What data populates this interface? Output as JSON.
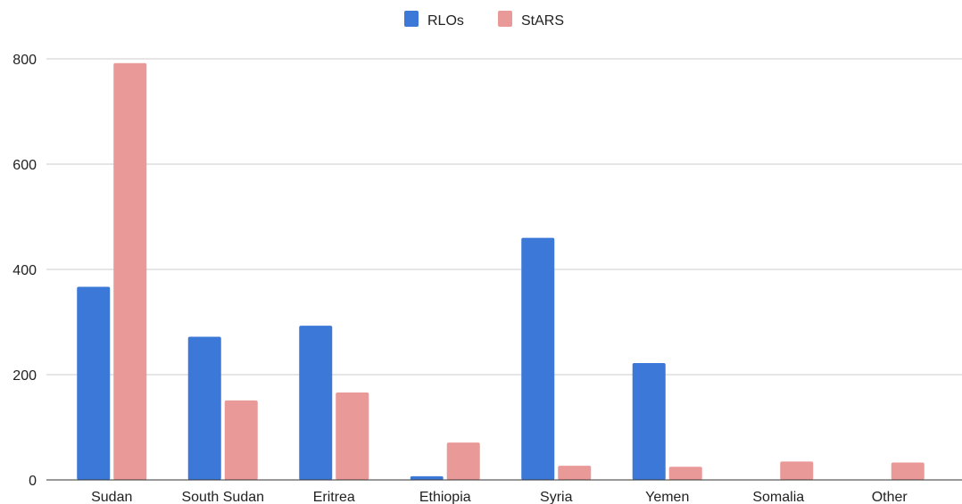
{
  "chart_data": {
    "type": "bar",
    "title": "",
    "xlabel": "",
    "ylabel": "",
    "categories": [
      "Sudan",
      "South Sudan",
      "Eritrea",
      "Ethiopia",
      "Syria",
      "Yemen",
      "Somalia",
      "Other"
    ],
    "series": [
      {
        "name": "RLOs",
        "color": "#3c78d8",
        "values": [
          367,
          272,
          293,
          7,
          460,
          222,
          0,
          0
        ]
      },
      {
        "name": "StARS",
        "color": "#ea9999",
        "values": [
          792,
          151,
          166,
          71,
          27,
          25,
          35,
          33
        ]
      }
    ],
    "ylim": [
      0,
      800
    ],
    "yticks": [
      0,
      200,
      400,
      600,
      800
    ],
    "grid": true,
    "legend_position": "top-center"
  }
}
